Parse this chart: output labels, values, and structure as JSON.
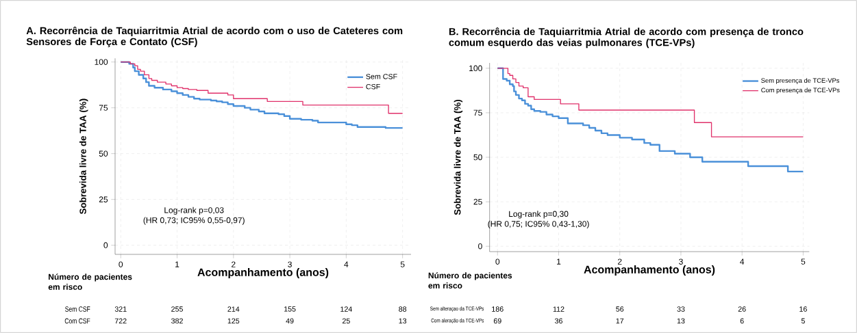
{
  "chart_data": [
    {
      "type": "step",
      "title": "**A.**  Recorrência de Taquiarritmia Atrial de acordo com o uso de Cateteres com Sensores de Força e Contato (CSF)",
      "xlabel": "Acompanhamento (anos)",
      "ylabel": "Sobrevida livre de TAA (%)",
      "xlim": [
        -0.1,
        5.15
      ],
      "ylim": [
        -5,
        102
      ],
      "xticks": [
        0,
        1,
        2,
        3,
        4,
        5
      ],
      "yticks": [
        0,
        25,
        50,
        75,
        100
      ],
      "grid": true,
      "legend": "top right",
      "series": [
        {
          "name": "Sem CSF",
          "color": "#4a90d9",
          "x": [
            0,
            0.15,
            0.22,
            0.25,
            0.32,
            0.4,
            0.45,
            0.5,
            0.6,
            0.75,
            0.9,
            1.0,
            1.1,
            1.2,
            1.3,
            1.4,
            1.6,
            1.7,
            1.8,
            1.9,
            2.0,
            2.2,
            2.3,
            2.45,
            2.55,
            2.8,
            2.9,
            3.0,
            3.2,
            3.4,
            3.5,
            4.0,
            4.1,
            4.2,
            4.7,
            5.0
          ],
          "values": [
            100,
            99,
            97,
            95,
            93,
            91,
            89,
            87,
            86,
            85,
            84,
            83,
            82,
            81,
            80,
            79.5,
            79,
            78.5,
            78,
            77,
            76,
            75,
            74,
            73,
            72,
            71.5,
            70.5,
            69,
            68.5,
            68,
            67,
            66,
            65.5,
            64.5,
            64,
            64
          ]
        },
        {
          "name": "CSF",
          "color": "#e0306a",
          "x": [
            0,
            0.17,
            0.25,
            0.3,
            0.35,
            0.42,
            0.5,
            0.55,
            0.65,
            0.8,
            0.9,
            1.0,
            1.1,
            1.2,
            1.35,
            1.55,
            1.9,
            2.0,
            2.6,
            3.23,
            4.75,
            5.0
          ],
          "values": [
            100,
            99,
            98,
            96,
            95,
            93,
            91,
            90,
            89,
            88,
            87,
            86,
            85.5,
            85,
            84.5,
            83,
            82,
            80,
            78.5,
            76.5,
            72,
            72
          ]
        }
      ],
      "annotations": [
        "Log-rank p=0,03",
        "(HR 0,73; IC95% 0,55-0,97)",
        "Número de pacientes em risco",
        "Sem CSF",
        "Com CSF",
        "321",
        "255",
        "214",
        "155",
        "124",
        "88",
        "722",
        "382",
        "125",
        "49",
        "25",
        "13"
      ]
    },
    {
      "type": "step",
      "title": "**B.**  Recorrência de Taquiarritmia Atrial de acordo com presença de tronco comum esquerdo das veias pulmonares (TCE-VPs)",
      "xlabel": "Acompanhamento (anos)",
      "ylabel": "Sobrevida livre de TAA (%)",
      "xlim": [
        -0.13,
        5.1
      ],
      "ylim": [
        -3,
        103
      ],
      "xticks": [
        0,
        1,
        2,
        3,
        4,
        5
      ],
      "yticks": [
        0,
        25,
        50,
        75,
        100
      ],
      "grid": true,
      "legend": "top right",
      "series": [
        {
          "name": "Sem presença de TCE-VPs",
          "color": "#4a90d9",
          "x": [
            0,
            0.09,
            0.15,
            0.2,
            0.25,
            0.27,
            0.3,
            0.35,
            0.4,
            0.45,
            0.5,
            0.55,
            0.6,
            0.7,
            0.8,
            0.9,
            1.0,
            1.15,
            1.4,
            1.5,
            1.6,
            1.7,
            1.8,
            2.0,
            2.2,
            2.4,
            2.5,
            2.65,
            2.9,
            3.15,
            3.35,
            4.1,
            4.75,
            5.0
          ],
          "values": [
            100,
            94,
            93,
            91,
            90,
            87,
            85,
            83,
            82,
            80,
            79,
            77,
            76,
            75.5,
            74,
            73,
            72,
            69,
            68,
            66.5,
            65,
            63.5,
            62.5,
            61,
            60,
            58,
            57,
            53.5,
            52,
            50,
            47.5,
            45,
            42,
            42
          ]
        },
        {
          "name": "Com presença de TCE-VPs",
          "color": "#e0306a",
          "x": [
            0,
            0.17,
            0.2,
            0.25,
            0.3,
            0.35,
            0.42,
            0.5,
            0.6,
            1.03,
            1.33,
            3.22,
            3.5,
            5.0
          ],
          "values": [
            100,
            97,
            96,
            94,
            92,
            90,
            89,
            84,
            82.5,
            80,
            76.5,
            69.5,
            61.5,
            61.5
          ]
        }
      ],
      "annotations": [
        "Log-rank p=0,30",
        "(HR 0,75; IC95% 0,43-1,30)",
        "Número de pacientes em risco",
        "Sem alteraçao da TCE-VPs",
        "Com aleração da TCE-VPs",
        "186",
        "112",
        "56",
        "33",
        "26",
        "16",
        "69",
        "36",
        "17",
        "13",
        "6",
        "5"
      ]
    }
  ]
}
